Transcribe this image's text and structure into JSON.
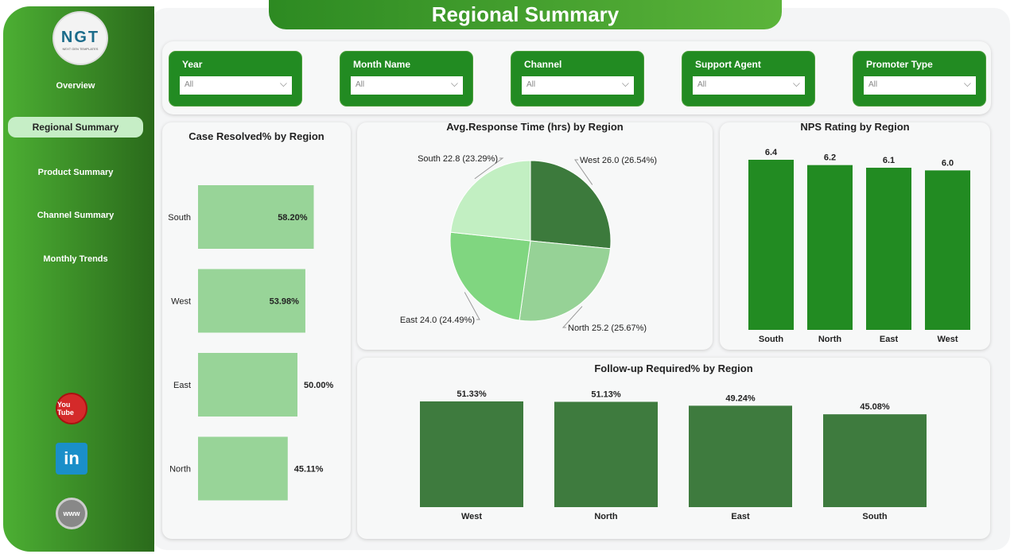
{
  "title": "Regional Summary",
  "logo": {
    "text": "NGT",
    "subtitle": "NEXT GEN TEMPLATES"
  },
  "nav": [
    {
      "label": "Overview"
    },
    {
      "label": "Regional Summary",
      "active": true
    },
    {
      "label": "Product Summary"
    },
    {
      "label": "Channel Summary"
    },
    {
      "label": "Monthly Trends"
    }
  ],
  "social": [
    {
      "icon": "youtube-icon",
      "label": "You Tube"
    },
    {
      "icon": "linkedin-icon",
      "label": "in"
    },
    {
      "icon": "globe-icon",
      "label": "www"
    }
  ],
  "filters": [
    {
      "label": "Year",
      "value": "All"
    },
    {
      "label": "Month Name",
      "value": "All"
    },
    {
      "label": "Channel",
      "value": "All"
    },
    {
      "label": "Support Agent",
      "value": "All"
    },
    {
      "label": "Promoter Type",
      "value": "All"
    }
  ],
  "chart_data": [
    {
      "type": "bar",
      "orientation": "horizontal",
      "title": "Case Resolved% by Region",
      "categories": [
        "South",
        "West",
        "East",
        "North"
      ],
      "values": [
        58.2,
        53.98,
        50.0,
        45.11
      ],
      "labels": [
        "58.20%",
        "53.98%",
        "50.00%",
        "45.11%"
      ],
      "color": "#98d498"
    },
    {
      "type": "pie",
      "title": "Avg.Response Time (hrs) by Region",
      "categories": [
        "West",
        "North",
        "East",
        "South"
      ],
      "values": [
        26.0,
        25.2,
        24.0,
        22.8
      ],
      "labels": [
        "West 26.0 (26.54%)",
        "North 25.2 (25.67%)",
        "East 24.0 (24.49%)",
        "South 22.8 (23.29%)"
      ],
      "percents": [
        26.54,
        25.67,
        24.49,
        23.29
      ],
      "colors": [
        "#3c7a3c",
        "#96d296",
        "#80d680",
        "#c2efc2"
      ]
    },
    {
      "type": "bar",
      "title": "NPS Rating by Region",
      "categories": [
        "South",
        "North",
        "East",
        "West"
      ],
      "values": [
        6.4,
        6.2,
        6.1,
        6.0
      ],
      "labels": [
        "6.4",
        "6.2",
        "6.1",
        "6.0"
      ],
      "color": "#228b22"
    },
    {
      "type": "bar",
      "title": "Follow-up Required% by Region",
      "categories": [
        "West",
        "North",
        "East",
        "South"
      ],
      "values": [
        51.33,
        51.13,
        49.24,
        45.08
      ],
      "labels": [
        "51.33%",
        "51.13%",
        "49.24%",
        "45.08%"
      ],
      "color": "#3e7b3e"
    }
  ]
}
